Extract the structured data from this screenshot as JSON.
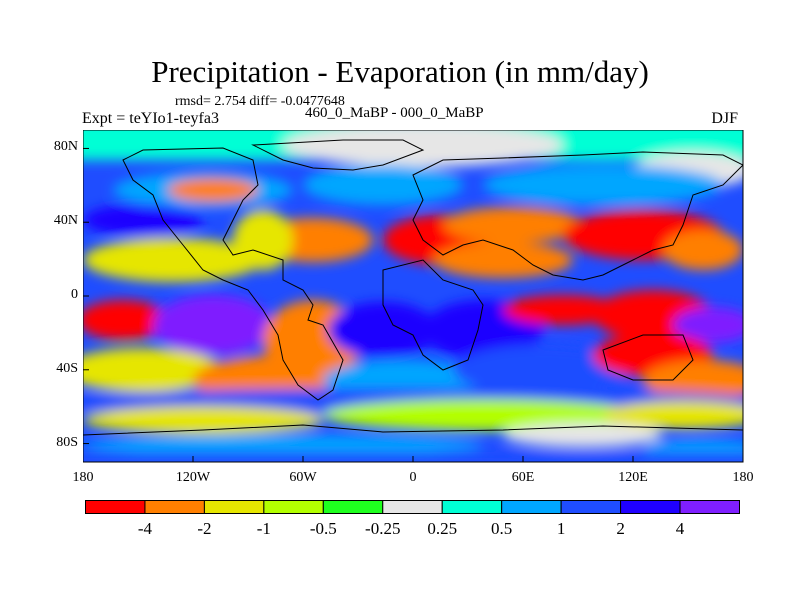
{
  "title": "Precipitation - Evaporation (in mm/day)",
  "stats_text": "rmsd= 2.754 diff= -0.0477648",
  "experiment_text": "Expt = teYIo1-teyfa3",
  "period_text": "460_0_MaBP - 000_0_MaBP",
  "season": "DJF",
  "map": {
    "lat_ticks": [
      "80N",
      "40N",
      "0",
      "40S",
      "80S"
    ],
    "lat_values": [
      80,
      40,
      0,
      -40,
      -80
    ],
    "lon_ticks": [
      "180",
      "120W",
      "60W",
      "0",
      "60E",
      "120E",
      "180"
    ],
    "lon_values": [
      -180,
      -120,
      -60,
      0,
      60,
      120,
      180
    ]
  },
  "colorbar": {
    "labels": [
      "-4",
      "-2",
      "-1",
      "-0.5",
      "-0.25",
      "0.25",
      "0.5",
      "1",
      "2",
      "4"
    ],
    "colors": [
      "#ff0000",
      "#ff7f00",
      "#e6e600",
      "#b3ff00",
      "#1fff1f",
      "#e6e6e6",
      "#00ffd5",
      "#00a6ff",
      "#1f4dff",
      "#1f00ff",
      "#7f1fff"
    ]
  }
}
